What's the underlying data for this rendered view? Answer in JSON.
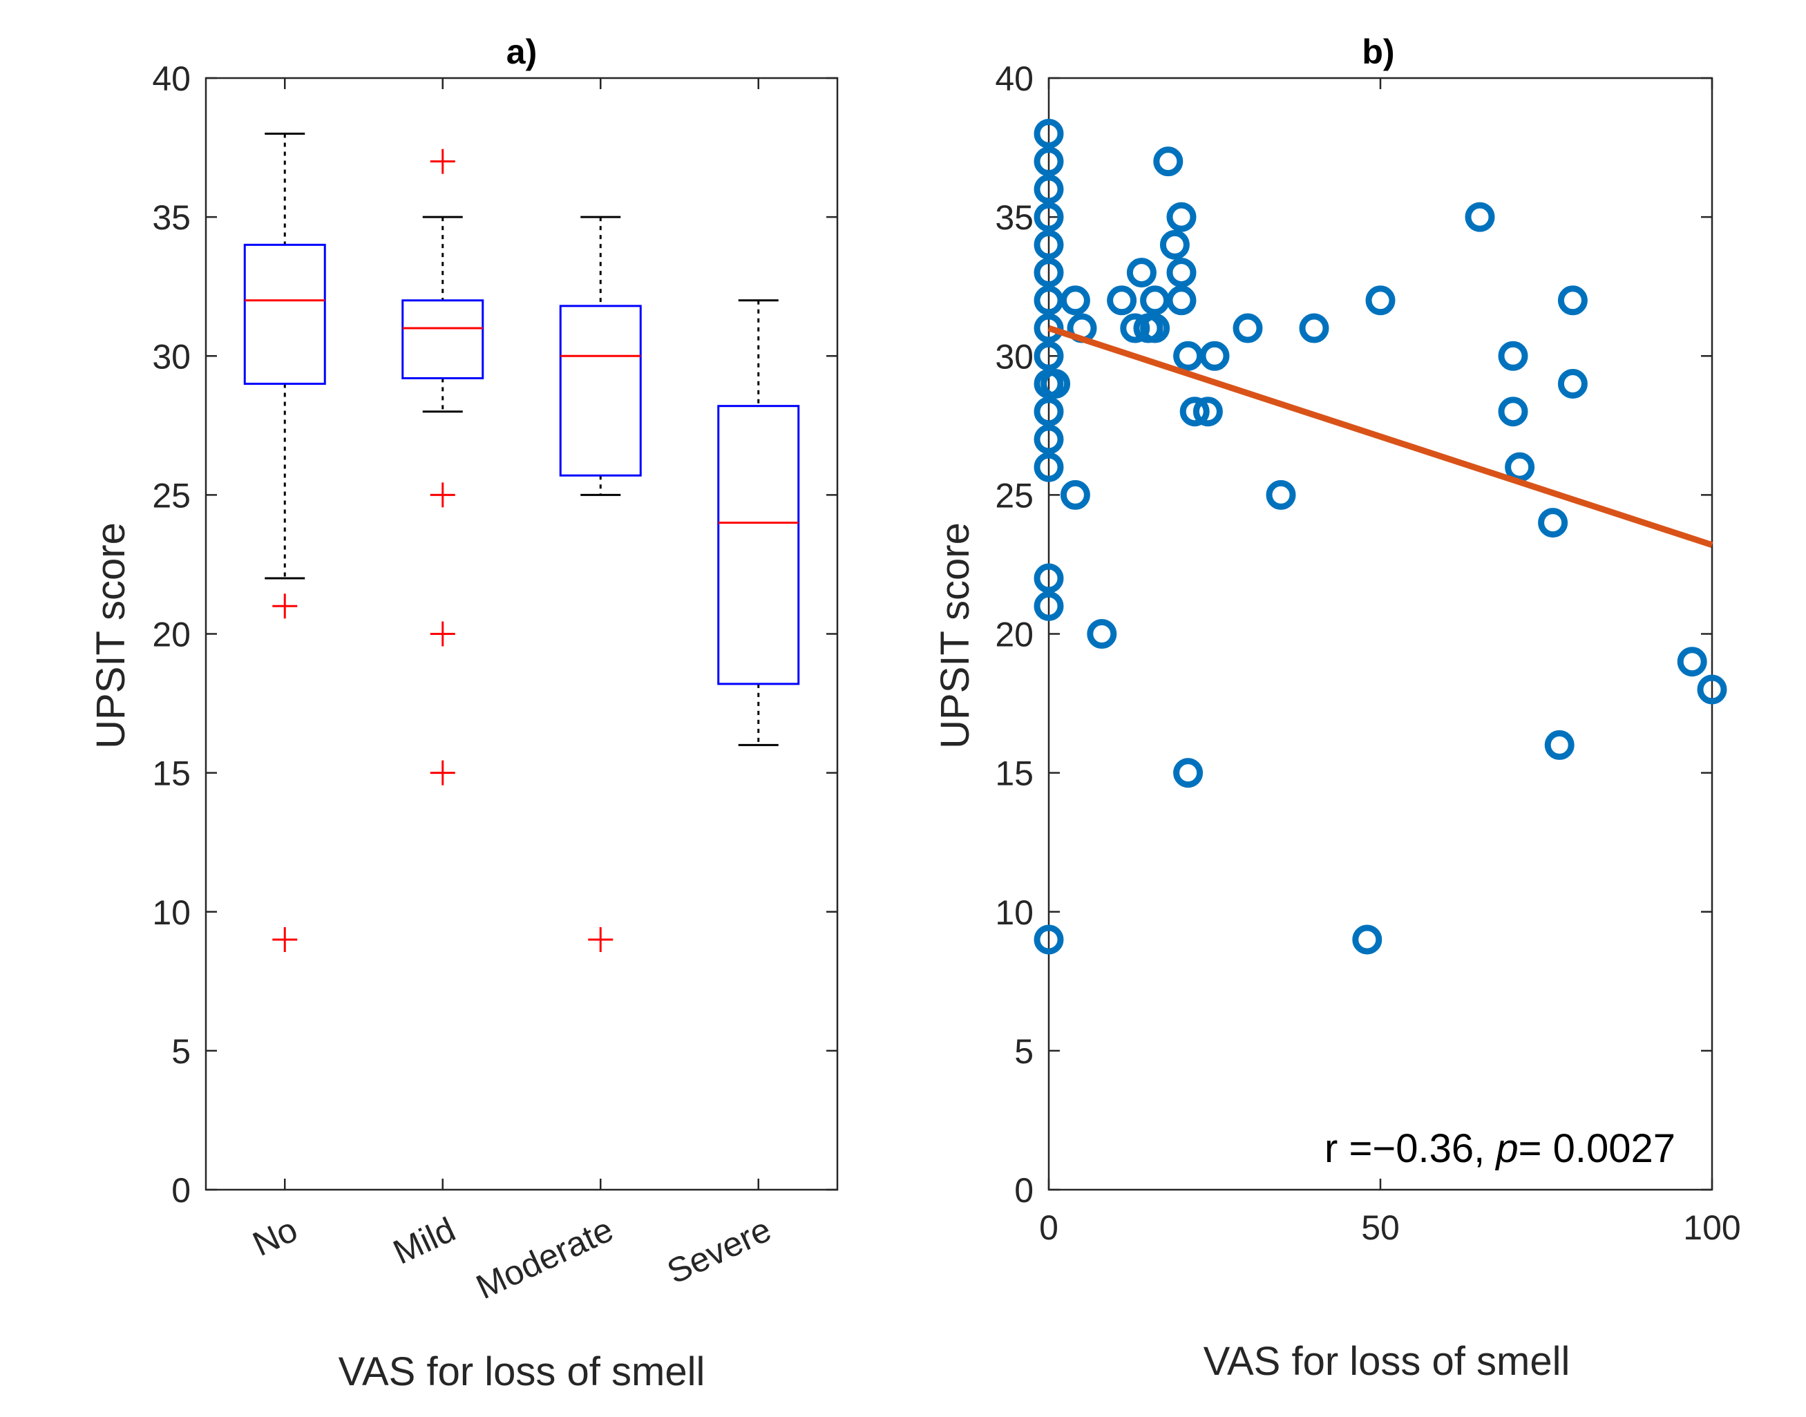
{
  "chart_data": [
    {
      "type": "box",
      "title": "a)",
      "xlabel": "VAS for loss of smell",
      "ylabel": "UPSIT score",
      "ylim": [
        0,
        40
      ],
      "yticks": [
        0,
        5,
        10,
        15,
        20,
        25,
        30,
        35,
        40
      ],
      "categories": [
        "No",
        "Mild",
        "Moderate",
        "Severe"
      ],
      "boxes": [
        {
          "category": "No",
          "whisker_low": 22,
          "q1": 29,
          "median": 32,
          "q3": 34,
          "whisker_high": 38,
          "outliers": [
            21,
            9
          ]
        },
        {
          "category": "Mild",
          "whisker_low": 28,
          "q1": 29.2,
          "median": 31,
          "q3": 32,
          "whisker_high": 35,
          "outliers": [
            37,
            25,
            20,
            15
          ]
        },
        {
          "category": "Moderate",
          "whisker_low": 25,
          "q1": 25.7,
          "median": 30,
          "q3": 31.8,
          "whisker_high": 35,
          "outliers": [
            9
          ]
        },
        {
          "category": "Severe",
          "whisker_low": 16,
          "q1": 18.2,
          "median": 24,
          "q3": 28.2,
          "whisker_high": 32,
          "outliers": []
        }
      ],
      "colors": {
        "box": "#0000ff",
        "median": "#ff0000",
        "outlier": "#ff0000",
        "whisker": "#000000"
      }
    },
    {
      "type": "scatter",
      "title": "b)",
      "xlabel": "VAS for loss of smell",
      "ylabel": "UPSIT score",
      "xlim": [
        0,
        100
      ],
      "ylim": [
        0,
        40
      ],
      "xticks": [
        0,
        50,
        100
      ],
      "yticks": [
        0,
        5,
        10,
        15,
        20,
        25,
        30,
        35,
        40
      ],
      "points": [
        [
          0,
          38
        ],
        [
          0,
          37
        ],
        [
          0,
          36
        ],
        [
          0,
          35
        ],
        [
          0,
          34
        ],
        [
          0,
          33
        ],
        [
          0,
          32
        ],
        [
          0,
          31
        ],
        [
          0,
          30
        ],
        [
          0,
          29
        ],
        [
          0,
          28
        ],
        [
          0,
          27
        ],
        [
          0,
          26
        ],
        [
          0,
          22
        ],
        [
          0,
          21
        ],
        [
          0,
          9
        ],
        [
          1,
          29
        ],
        [
          4,
          32
        ],
        [
          5,
          31
        ],
        [
          4,
          25
        ],
        [
          8,
          20
        ],
        [
          11,
          32
        ],
        [
          13,
          31
        ],
        [
          14,
          33
        ],
        [
          15,
          31
        ],
        [
          16,
          32
        ],
        [
          16,
          31
        ],
        [
          18,
          37
        ],
        [
          19,
          34
        ],
        [
          20,
          35
        ],
        [
          20,
          33
        ],
        [
          20,
          32
        ],
        [
          21,
          30
        ],
        [
          21,
          15
        ],
        [
          22,
          28
        ],
        [
          24,
          28
        ],
        [
          25,
          30
        ],
        [
          30,
          31
        ],
        [
          35,
          25
        ],
        [
          40,
          31
        ],
        [
          48,
          9
        ],
        [
          50,
          32
        ],
        [
          65,
          35
        ],
        [
          70,
          30
        ],
        [
          70,
          28
        ],
        [
          71,
          26
        ],
        [
          76,
          24
        ],
        [
          77,
          16
        ],
        [
          79,
          32
        ],
        [
          79,
          29
        ],
        [
          97,
          19
        ],
        [
          100,
          18
        ]
      ],
      "fit_line": {
        "x": [
          0,
          100
        ],
        "y": [
          31,
          23.2
        ]
      },
      "annotation": {
        "r_text": "r =−0.36, ",
        "p_symbol": "p",
        "p_text": "= 0.0027"
      },
      "colors": {
        "marker": "#0072bd",
        "fit": "#d95319"
      }
    }
  ]
}
